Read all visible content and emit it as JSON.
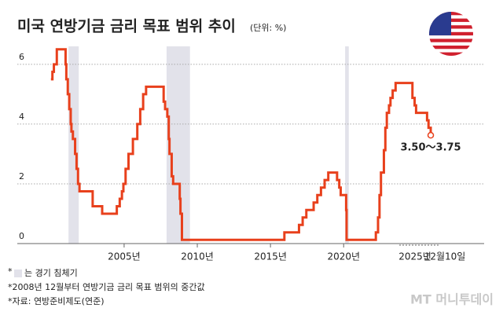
{
  "chart_data": {
    "type": "line",
    "step": true,
    "title": "미국 연방기금 금리 목표 범위 추이",
    "subtitle": "(단위: %)",
    "color": "#e8401c",
    "x": [
      2000.0,
      2000.1,
      2000.2,
      2000.4,
      2001.0,
      2001.05,
      2001.15,
      2001.25,
      2001.35,
      2001.4,
      2001.5,
      2001.65,
      2001.75,
      2001.85,
      2001.95,
      2002.85,
      2003.5,
      2004.5,
      2004.7,
      2004.85,
      2004.95,
      2005.1,
      2005.3,
      2005.6,
      2005.9,
      2006.1,
      2006.3,
      2006.5,
      2007.7,
      2007.8,
      2007.95,
      2008.05,
      2008.1,
      2008.25,
      2008.35,
      2008.8,
      2008.85,
      2008.95,
      2015.95,
      2016.95,
      2017.2,
      2017.45,
      2017.95,
      2018.2,
      2018.45,
      2018.7,
      2018.95,
      2019.55,
      2019.7,
      2019.8,
      2020.17,
      2020.2,
      2022.2,
      2022.35,
      2022.45,
      2022.55,
      2022.75,
      2022.85,
      2022.95,
      2023.1,
      2023.2,
      2023.35,
      2023.55,
      2024.7,
      2024.85,
      2024.95,
      2025.7,
      2025.8,
      2025.95
    ],
    "values": [
      5.5,
      5.75,
      6.0,
      6.5,
      6.0,
      5.5,
      5.0,
      4.5,
      4.0,
      3.75,
      3.5,
      3.0,
      2.5,
      2.0,
      1.75,
      1.25,
      1.0,
      1.25,
      1.5,
      1.75,
      2.0,
      2.5,
      3.0,
      3.5,
      4.0,
      4.5,
      5.0,
      5.25,
      4.75,
      4.5,
      4.25,
      3.5,
      3.0,
      2.25,
      2.0,
      1.5,
      1.0,
      0.125,
      0.375,
      0.625,
      0.875,
      1.125,
      1.375,
      1.625,
      1.875,
      2.125,
      2.375,
      2.125,
      1.875,
      1.625,
      1.125,
      0.125,
      0.375,
      0.875,
      1.625,
      2.375,
      3.125,
      3.875,
      4.375,
      4.625,
      4.875,
      5.125,
      5.375,
      4.875,
      4.625,
      4.375,
      4.125,
      3.875,
      3.625
    ],
    "xlim": [
      1997.7,
      2029.6
    ],
    "ylim": [
      0,
      6.6
    ],
    "xticks": [
      {
        "value": 2005,
        "label": "2005년"
      },
      {
        "value": 2010,
        "label": "2010년"
      },
      {
        "value": 2015,
        "label": "2015년"
      },
      {
        "value": 2020,
        "label": "2020년"
      }
    ],
    "yticks": [
      0,
      2,
      4,
      6
    ],
    "grid": true,
    "recessions": [
      [
        2001.2,
        2001.9
      ],
      [
        2007.9,
        2009.5
      ],
      [
        2020.1,
        2020.35
      ]
    ],
    "recession_color": "#e2e2ea",
    "end_annotation": "3.50～3.75",
    "end_date_labels": [
      "2025년",
      "12월10일"
    ],
    "notes": {
      "legend_mark": "*",
      "legend_text": "는 경기 침체기",
      "note": "*2008년 12월부터 연방기금 금리 목표 범위의 중간값",
      "source": "*자료: 연방준비제도(연준)"
    },
    "watermark": "MT 머니투데이"
  }
}
